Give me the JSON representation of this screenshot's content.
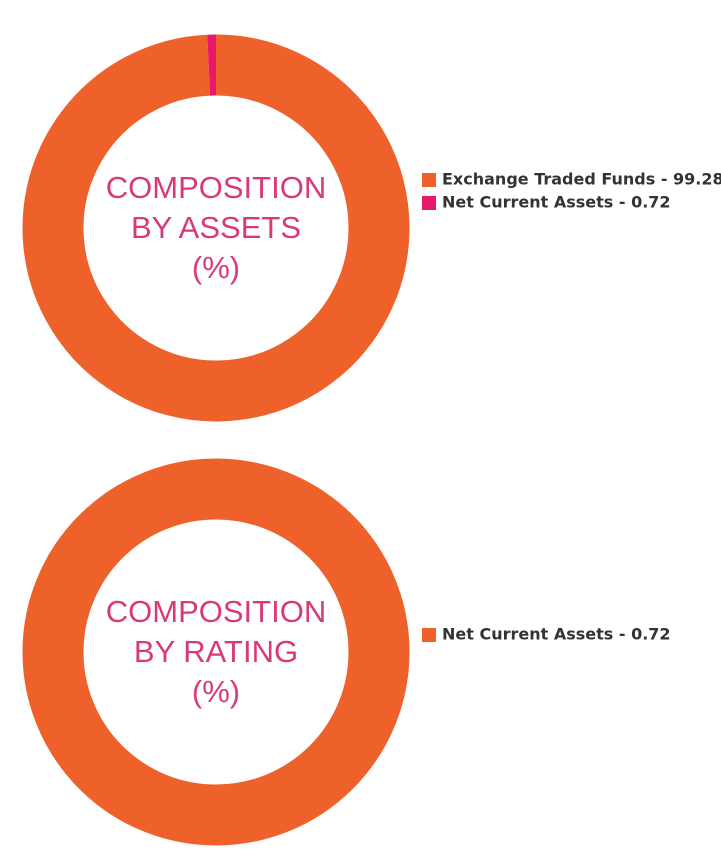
{
  "chart_data": [
    {
      "type": "donut",
      "title_lines": [
        "COMPOSITION",
        "BY ASSETS",
        "(%)"
      ],
      "categories": [
        "Exchange Traded Funds - 99.28",
        "Net Current Assets - 0.72"
      ],
      "values": [
        99.28,
        0.72
      ],
      "colors": [
        "#ef612b",
        "#e8186a"
      ]
    },
    {
      "type": "donut",
      "title_lines": [
        "COMPOSITION",
        "BY RATING",
        "(%)"
      ],
      "categories": [
        "Net Current Assets - 0.72"
      ],
      "values": [
        0.72
      ],
      "colors": [
        "#ef612b"
      ]
    }
  ]
}
